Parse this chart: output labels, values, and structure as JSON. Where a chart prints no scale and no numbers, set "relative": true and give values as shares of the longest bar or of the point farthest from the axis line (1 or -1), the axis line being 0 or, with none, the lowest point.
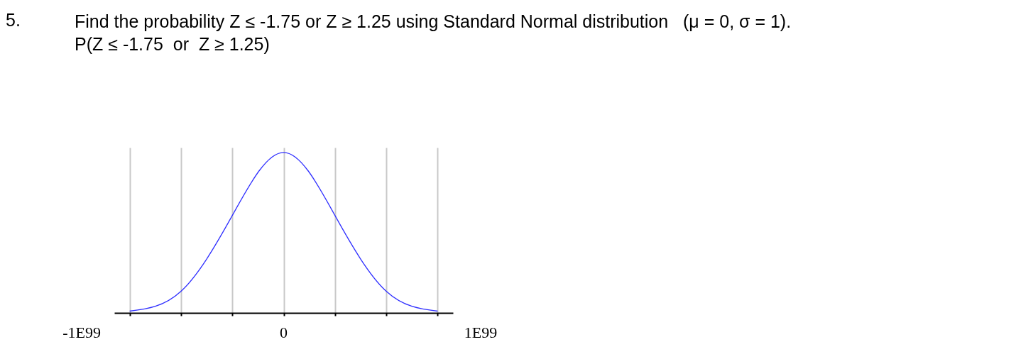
{
  "chart_data": {
    "type": "line",
    "title": "Find the probability Z ≤ -1.75 or Z ≥ 1.25 using Standard Normal distribution   (μ = 0, σ = 1).",
    "subtitle": "P(Z ≤ -1.75  or  Z ≥ 1.25)",
    "annotations": [
      "5.",
      "-1E99",
      "0",
      "1E99"
    ],
    "categories": [
      null,
      null,
      null,
      null,
      null,
      null,
      null
    ],
    "series": [
      {
        "color": "#3030ff",
        "values": [
          0.011,
          0.135,
          0.607,
          1,
          0.607,
          0.135,
          0.011
        ]
      }
    ],
    "relative": true,
    "grid": "x"
  }
}
